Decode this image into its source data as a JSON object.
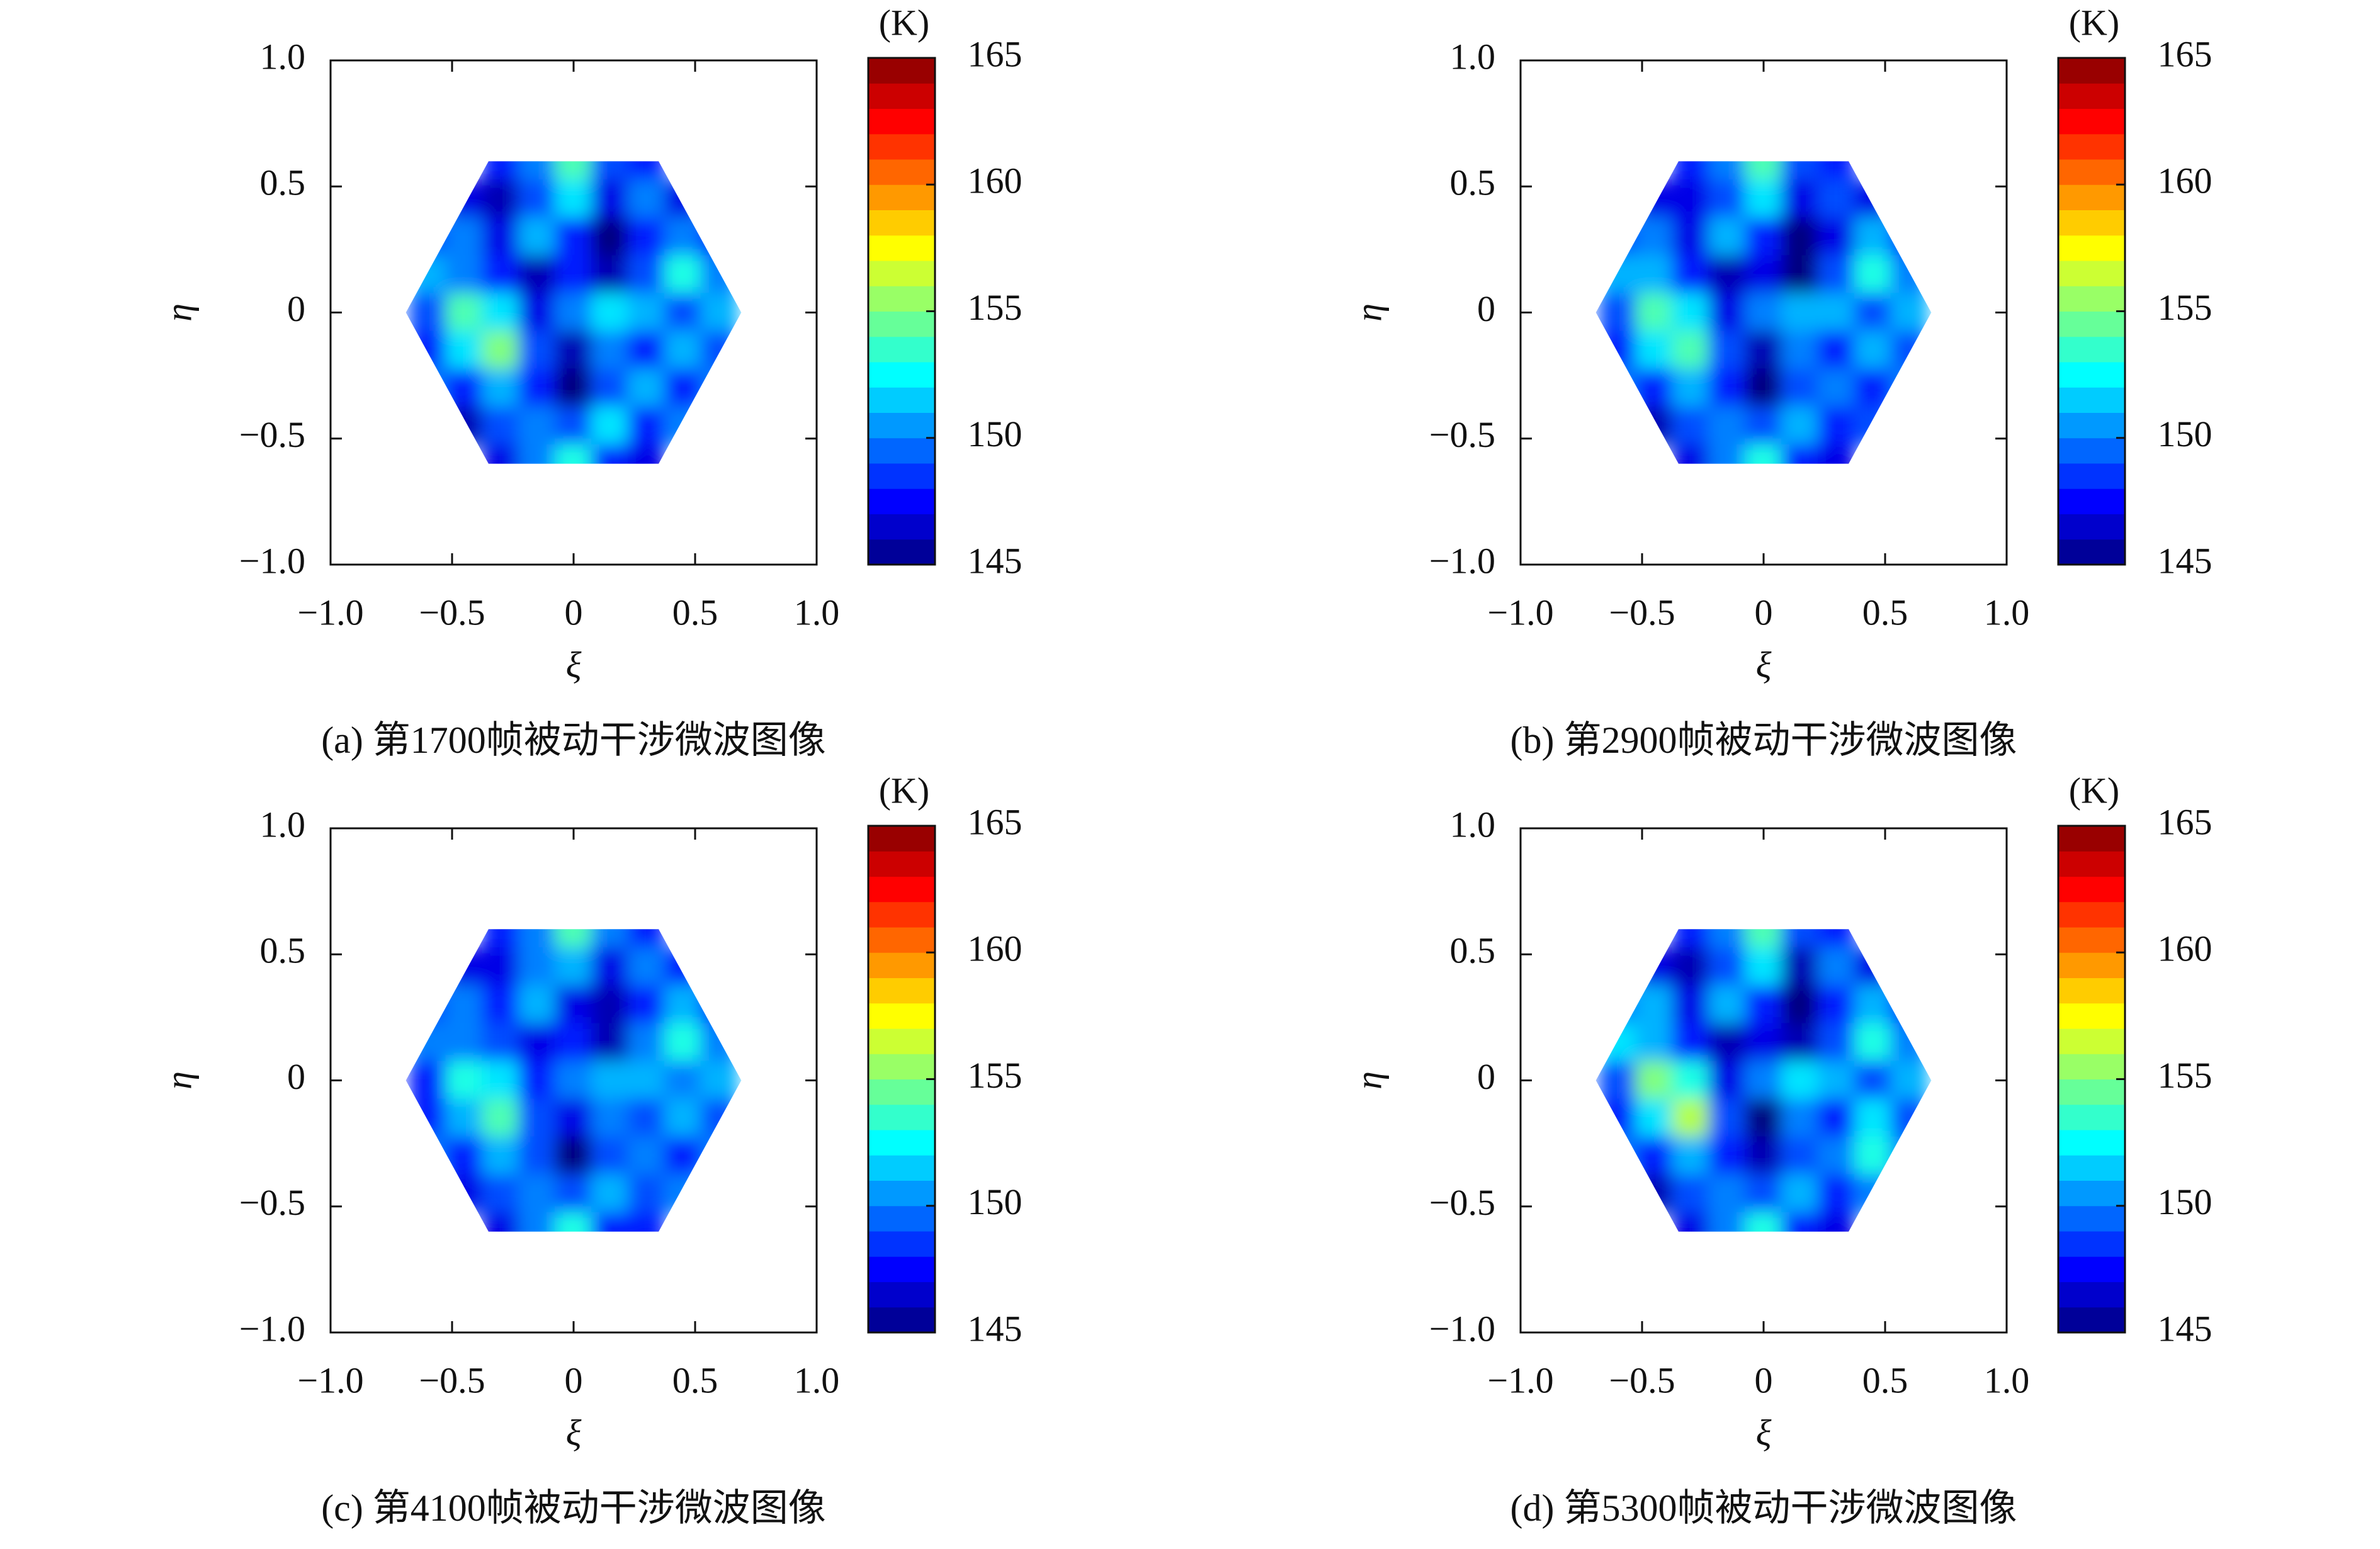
{
  "chart_data": [
    {
      "type": "heatmap",
      "title": "(a) 第1700帧被动干涉微波图像",
      "xlabel": "ξ",
      "ylabel": "η",
      "colorbar_label": "(K)",
      "colormap": "jet",
      "x": [
        -0.6,
        -0.45,
        -0.3,
        -0.15,
        0,
        0.15,
        0.3,
        0.45,
        0.6
      ],
      "y": [
        0.6,
        0.45,
        0.3,
        0.15,
        0,
        -0.15,
        -0.3,
        -0.45,
        -0.6
      ],
      "z": [
        [
          null,
          null,
          148,
          150,
          154,
          149,
          148,
          null,
          null
        ],
        [
          null,
          147,
          146,
          149,
          152,
          147,
          150,
          147,
          null
        ],
        [
          149,
          150,
          147,
          151,
          148,
          145,
          148,
          150,
          148
        ],
        [
          151,
          150,
          148,
          146,
          148,
          146,
          149,
          153,
          150
        ],
        [
          149,
          154,
          152,
          147,
          150,
          152,
          151,
          149,
          151
        ],
        [
          148,
          152,
          155,
          149,
          146,
          150,
          148,
          151,
          149
        ],
        [
          150,
          148,
          151,
          148,
          145,
          149,
          151,
          148,
          150
        ],
        [
          null,
          146,
          149,
          150,
          149,
          152,
          148,
          150,
          null
        ],
        [
          null,
          null,
          147,
          150,
          153,
          148,
          147,
          null,
          null
        ]
      ],
      "xlim": [
        -1,
        1
      ],
      "ylim": [
        -1,
        1
      ],
      "zlim": [
        145,
        165
      ],
      "xticks": [
        {
          "value": -1,
          "label": "−1.0"
        },
        {
          "value": -0.5,
          "label": "−0.5"
        },
        0,
        0.5,
        {
          "value": 1,
          "label": "1.0"
        }
      ],
      "yticks": [
        {
          "value": -1,
          "label": "−1.0"
        },
        {
          "value": -0.5,
          "label": "−0.5"
        },
        0,
        0.5,
        {
          "value": 1,
          "label": "1.0"
        }
      ],
      "zticks": [
        145,
        150,
        155,
        160,
        165
      ]
    },
    {
      "type": "heatmap",
      "title": "(b) 第2900帧被动干涉微波图像",
      "xlabel": "ξ",
      "ylabel": "η",
      "colorbar_label": "(K)",
      "colormap": "jet",
      "x": [
        -0.6,
        -0.45,
        -0.3,
        -0.15,
        0,
        0.15,
        0.3,
        0.45,
        0.6
      ],
      "y": [
        0.6,
        0.45,
        0.3,
        0.15,
        0,
        -0.15,
        -0.3,
        -0.45,
        -0.6
      ],
      "z": [
        [
          null,
          null,
          148,
          150,
          154,
          149,
          148,
          null,
          null
        ],
        [
          null,
          147,
          147,
          149,
          152,
          147,
          149,
          147,
          null
        ],
        [
          149,
          150,
          147,
          151,
          148,
          145,
          147,
          151,
          148
        ],
        [
          151,
          151,
          148,
          146,
          147,
          145,
          149,
          153,
          150
        ],
        [
          149,
          154,
          152,
          147,
          150,
          151,
          151,
          149,
          151
        ],
        [
          148,
          152,
          154,
          149,
          146,
          150,
          148,
          151,
          149
        ],
        [
          150,
          148,
          151,
          148,
          145,
          149,
          150,
          148,
          150
        ],
        [
          null,
          146,
          149,
          150,
          149,
          151,
          148,
          149,
          null
        ],
        [
          null,
          null,
          147,
          150,
          153,
          148,
          147,
          null,
          null
        ]
      ],
      "xlim": [
        -1,
        1
      ],
      "ylim": [
        -1,
        1
      ],
      "zlim": [
        145,
        165
      ],
      "xticks": [
        {
          "value": -1,
          "label": "−1.0"
        },
        {
          "value": -0.5,
          "label": "−0.5"
        },
        0,
        0.5,
        {
          "value": 1,
          "label": "1.0"
        }
      ],
      "yticks": [
        {
          "value": -1,
          "label": "−1.0"
        },
        {
          "value": -0.5,
          "label": "−0.5"
        },
        0,
        0.5,
        {
          "value": 1,
          "label": "1.0"
        }
      ],
      "zticks": [
        145,
        150,
        155,
        160,
        165
      ]
    },
    {
      "type": "heatmap",
      "title": "(c) 第4100帧被动干涉微波图像",
      "xlabel": "ξ",
      "ylabel": "η",
      "colorbar_label": "(K)",
      "colormap": "jet",
      "x": [
        -0.6,
        -0.45,
        -0.3,
        -0.15,
        0,
        0.15,
        0.3,
        0.45,
        0.6
      ],
      "y": [
        0.6,
        0.45,
        0.3,
        0.15,
        0,
        -0.15,
        -0.3,
        -0.45,
        -0.6
      ],
      "z": [
        [
          null,
          null,
          148,
          150,
          154,
          150,
          148,
          null,
          null
        ],
        [
          null,
          147,
          147,
          150,
          151,
          147,
          150,
          148,
          null
        ],
        [
          149,
          150,
          148,
          151,
          147,
          146,
          148,
          151,
          148
        ],
        [
          150,
          150,
          149,
          147,
          148,
          146,
          150,
          153,
          150
        ],
        [
          148,
          153,
          152,
          148,
          150,
          151,
          151,
          150,
          151
        ],
        [
          148,
          151,
          154,
          149,
          147,
          150,
          149,
          151,
          149
        ],
        [
          150,
          148,
          151,
          149,
          145,
          149,
          150,
          148,
          150
        ],
        [
          null,
          147,
          149,
          150,
          149,
          151,
          149,
          150,
          null
        ],
        [
          null,
          null,
          147,
          150,
          153,
          148,
          148,
          null,
          null
        ]
      ],
      "xlim": [
        -1,
        1
      ],
      "ylim": [
        -1,
        1
      ],
      "zlim": [
        145,
        165
      ],
      "xticks": [
        {
          "value": -1,
          "label": "−1.0"
        },
        {
          "value": -0.5,
          "label": "−0.5"
        },
        0,
        0.5,
        {
          "value": 1,
          "label": "1.0"
        }
      ],
      "yticks": [
        {
          "value": -1,
          "label": "−1.0"
        },
        {
          "value": -0.5,
          "label": "−0.5"
        },
        0,
        0.5,
        {
          "value": 1,
          "label": "1.0"
        }
      ],
      "zticks": [
        145,
        150,
        155,
        160,
        165
      ]
    },
    {
      "type": "heatmap",
      "title": "(d) 第5300帧被动干涉微波图像",
      "xlabel": "ξ",
      "ylabel": "η",
      "colorbar_label": "(K)",
      "colormap": "jet",
      "x": [
        -0.6,
        -0.45,
        -0.3,
        -0.15,
        0,
        0.15,
        0.3,
        0.45,
        0.6
      ],
      "y": [
        0.6,
        0.45,
        0.3,
        0.15,
        0,
        -0.15,
        -0.3,
        -0.45,
        -0.6
      ],
      "z": [
        [
          null,
          null,
          148,
          150,
          154,
          149,
          148,
          null,
          null
        ],
        [
          null,
          147,
          146,
          149,
          152,
          146,
          150,
          147,
          null
        ],
        [
          150,
          151,
          147,
          151,
          148,
          145,
          148,
          151,
          148
        ],
        [
          152,
          151,
          148,
          146,
          147,
          146,
          149,
          153,
          150
        ],
        [
          149,
          155,
          153,
          147,
          150,
          152,
          151,
          149,
          151
        ],
        [
          148,
          152,
          156,
          149,
          145,
          150,
          148,
          152,
          149
        ],
        [
          150,
          148,
          151,
          148,
          146,
          149,
          150,
          153,
          150
        ],
        [
          null,
          146,
          149,
          150,
          149,
          151,
          148,
          150,
          null
        ],
        [
          null,
          null,
          147,
          150,
          153,
          148,
          147,
          null,
          null
        ]
      ],
      "xlim": [
        -1,
        1
      ],
      "ylim": [
        -1,
        1
      ],
      "zlim": [
        145,
        165
      ],
      "xticks": [
        {
          "value": -1,
          "label": "−1.0"
        },
        {
          "value": -0.5,
          "label": "−0.5"
        },
        0,
        0.5,
        {
          "value": 1,
          "label": "1.0"
        }
      ],
      "yticks": [
        {
          "value": -1,
          "label": "−1.0"
        },
        {
          "value": -0.5,
          "label": "−0.5"
        },
        0,
        0.5,
        {
          "value": 1,
          "label": "1.0"
        }
      ],
      "zticks": [
        145,
        150,
        155,
        160,
        165
      ]
    }
  ]
}
